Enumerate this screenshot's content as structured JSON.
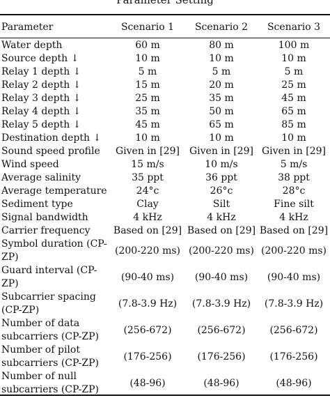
{
  "title": "Parameter Setting",
  "headers": [
    "Parameter",
    "Scenario 1",
    "Scenario 2",
    "Scenario 3"
  ],
  "rows": [
    {
      "param": "Water depth",
      "values": [
        "60 m",
        "80 m",
        "100 m"
      ]
    },
    {
      "param": "Source depth ↓",
      "values": [
        "10 m",
        "10 m",
        "10 m"
      ]
    },
    {
      "param": "Relay 1 depth ↓",
      "values": [
        "5 m",
        "5 m",
        "5 m"
      ]
    },
    {
      "param": "Relay 2 depth ↓",
      "values": [
        "15 m",
        "20 m",
        "25 m"
      ]
    },
    {
      "param": "Relay 3 depth ↓",
      "values": [
        "25 m",
        "35 m",
        "45 m"
      ]
    },
    {
      "param": "Relay 4 depth ↓",
      "values": [
        "35 m",
        "50 m",
        "65 m"
      ]
    },
    {
      "param": "Relay 5 depth ↓",
      "values": [
        "45 m",
        "65 m",
        "85 m"
      ]
    },
    {
      "param": "Destination depth ↓",
      "values": [
        "10 m",
        "10 m",
        "10 m"
      ]
    },
    {
      "param": "Sound speed profile",
      "values": [
        "Given in [29]",
        "Given in [29]",
        "Given in [29]"
      ]
    },
    {
      "param": "Wind speed",
      "values": [
        "15 m/s",
        "10 m/s",
        "5 m/s"
      ]
    },
    {
      "param": "Average salinity",
      "values": [
        "35 ppt",
        "36 ppt",
        "38 ppt"
      ]
    },
    {
      "param": "Average temperature",
      "values": [
        "24°c",
        "26°c",
        "28°c"
      ]
    },
    {
      "param": "Sediment type",
      "values": [
        "Clay",
        "Silt",
        "Fine silt"
      ]
    },
    {
      "param": "Signal bandwidth",
      "values": [
        "4 kHz",
        "4 kHz",
        "4 kHz"
      ]
    },
    {
      "param": "Carrier frequency",
      "values": [
        "Based on [29]",
        "Based on [29]",
        "Based on [29]"
      ]
    },
    {
      "param": "Symbol duration (CP-ZP)",
      "values": [
        "(200-220 ms)",
        "(200-220 ms)",
        "(200-220 ms)"
      ]
    },
    {
      "param": "Guard interval (CP-ZP)",
      "values": [
        "(90-40 ms)",
        "(90-40 ms)",
        "(90-40 ms)"
      ]
    },
    {
      "param": "Subcarrier spacing (CP-ZP)",
      "values": [
        "(7.8-3.9 Hz)",
        "(7.8-3.9 Hz)",
        "(7.8-3.9 Hz)"
      ]
    },
    {
      "param": "Number of data subcarriers (CP-ZP)",
      "values": [
        "(256-672)",
        "(256-672)",
        "(256-672)"
      ]
    },
    {
      "param": "Number of pilot subcarriers (CP-ZP)",
      "values": [
        "(176-256)",
        "(176-256)",
        "(176-256)"
      ]
    },
    {
      "param": "Number of null subcarriers (CP-ZP)",
      "values": [
        "(48-96)",
        "(48-96)",
        "(48-96)"
      ]
    }
  ]
}
